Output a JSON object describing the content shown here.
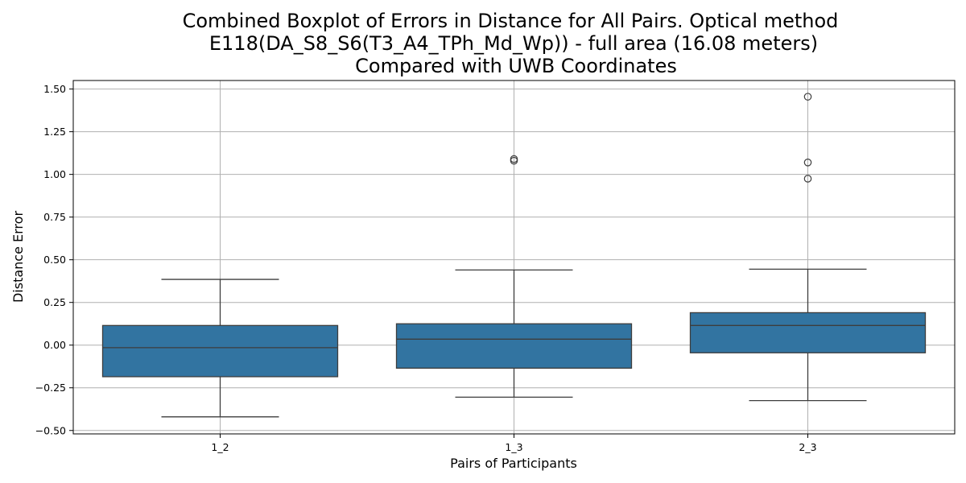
{
  "chart_data": {
    "type": "boxplot",
    "title_lines": [
      "Combined Boxplot of Errors in Distance for All Pairs. Optical method",
      "E118(DA_S8_S6(T3_A4_TPh_Md_Wp)) - full area (16.08 meters)",
      "Compared with UWB Coordinates"
    ],
    "xlabel": "Pairs of Participants",
    "ylabel": "Distance Error",
    "categories": [
      "1_2",
      "1_3",
      "2_3"
    ],
    "ylim": [
      -0.52,
      1.55
    ],
    "yticks": [
      -0.5,
      -0.25,
      0.0,
      0.25,
      0.5,
      0.75,
      1.0,
      1.25,
      1.5
    ],
    "ytick_labels": [
      "−0.50",
      "−0.25",
      "0.00",
      "0.25",
      "0.50",
      "0.75",
      "1.00",
      "1.25",
      "1.50"
    ],
    "grid": true,
    "box_color": "#3274a1",
    "boxes": [
      {
        "category": "1_2",
        "whisker_low": -0.42,
        "q1": -0.185,
        "median": -0.015,
        "q3": 0.115,
        "whisker_high": 0.385,
        "outliers": []
      },
      {
        "category": "1_3",
        "whisker_low": -0.305,
        "q1": -0.135,
        "median": 0.035,
        "q3": 0.125,
        "whisker_high": 0.44,
        "outliers": [
          1.08,
          1.09
        ]
      },
      {
        "category": "2_3",
        "whisker_low": -0.325,
        "q1": -0.045,
        "median": 0.115,
        "q3": 0.19,
        "whisker_high": 0.445,
        "outliers": [
          0.975,
          1.07,
          1.455
        ]
      }
    ]
  }
}
